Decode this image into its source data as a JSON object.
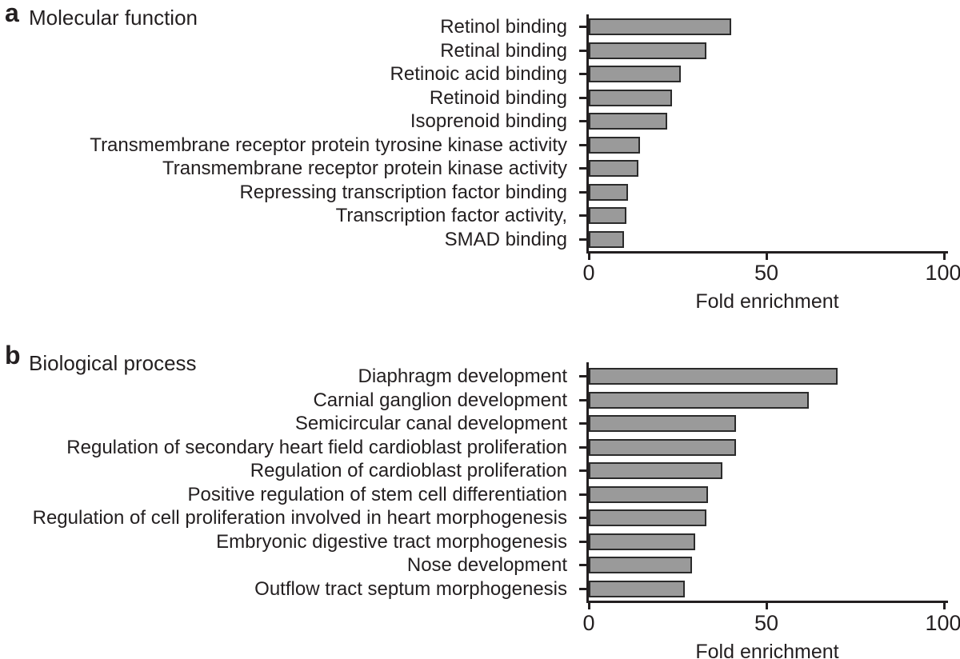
{
  "chart_data": [
    {
      "type": "bar",
      "orientation": "horizontal",
      "panel_label": "a",
      "title": "Molecular function",
      "categories": [
        "Retinol binding",
        "Retinal binding",
        "Retinoic acid binding",
        "Retinoid binding",
        "Isoprenoid binding",
        "Transmembrane receptor protein tyrosine kinase activity",
        "Transmembrane receptor protein kinase activity",
        "Repressing transcription factor binding",
        "Transcription factor activity,",
        "SMAD binding"
      ],
      "values": [
        40,
        33,
        26,
        23.5,
        22,
        14.5,
        14,
        11,
        10.5,
        10
      ],
      "xlabel": "Fold enrichment",
      "xlim": [
        0,
        100
      ],
      "xticks": [
        "0",
        "50",
        "100"
      ],
      "grid": false,
      "legend": "none",
      "bar_color": "#9a9a9a",
      "bar_border_color": "#2b2b2b",
      "axis_color": "#231f20"
    },
    {
      "type": "bar",
      "orientation": "horizontal",
      "panel_label": "b",
      "title": "Biological process",
      "categories": [
        "Diaphragm development",
        "Carnial ganglion development",
        "Semicircular canal development",
        "Regulation of secondary heart field cardioblast proliferation",
        "Regulation of cardioblast proliferation",
        "Positive regulation of stem cell differentiation",
        "Regulation of cell proliferation involved in heart morphogenesis",
        "Embryonic digestive tract morphogenesis",
        "Nose development",
        "Outflow tract septum morphogenesis"
      ],
      "values": [
        70,
        62,
        41.5,
        41.5,
        37.5,
        33.5,
        33,
        30,
        29,
        27
      ],
      "xlabel": "Fold enrichment",
      "xlim": [
        0,
        100
      ],
      "xticks": [
        "0",
        "50",
        "100"
      ],
      "grid": false,
      "legend": "none",
      "bar_color": "#9a9a9a",
      "bar_border_color": "#2b2b2b",
      "axis_color": "#231f20"
    }
  ]
}
